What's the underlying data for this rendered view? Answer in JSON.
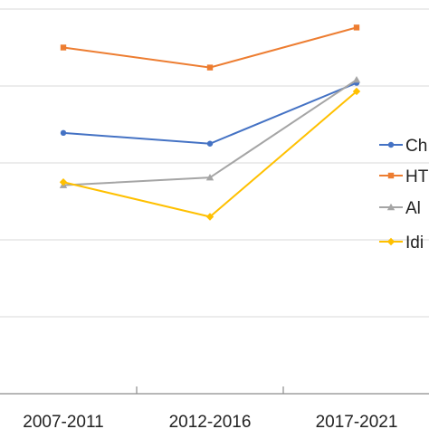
{
  "chart_data": {
    "type": "line",
    "categories": [
      "2007-2011",
      "2012-2016",
      "2017-2021"
    ],
    "ylim": [
      0,
      5
    ],
    "grid": true,
    "legend_position": "right",
    "series": [
      {
        "name": "Ch",
        "color": "#4472C4",
        "marker": "circle",
        "values": [
          3.39,
          3.25,
          4.04
        ]
      },
      {
        "name": "HT",
        "color": "#ED7D31",
        "marker": "square",
        "values": [
          4.5,
          4.24,
          4.76
        ]
      },
      {
        "name": "Al",
        "color": "#A5A5A5",
        "marker": "triangle",
        "values": [
          2.71,
          2.81,
          4.08
        ]
      },
      {
        "name": "Idi",
        "color": "#FFC000",
        "marker": "diamond",
        "values": [
          2.75,
          2.3,
          3.93
        ]
      }
    ]
  }
}
